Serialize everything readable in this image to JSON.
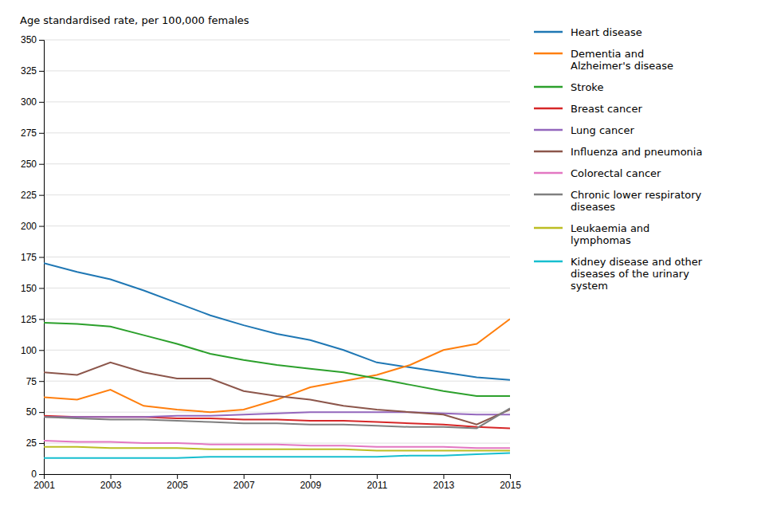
{
  "chart_data": {
    "type": "line",
    "y_label": "Age standardised rate, per 100,000 females",
    "x": [
      2001,
      2002,
      2003,
      2004,
      2005,
      2006,
      2007,
      2008,
      2009,
      2010,
      2011,
      2012,
      2013,
      2014,
      2015
    ],
    "series": [
      {
        "name": "Heart disease",
        "values": [
          170,
          163,
          157,
          148,
          138,
          128,
          120,
          113,
          108,
          100,
          90,
          86,
          82,
          78,
          76
        ]
      },
      {
        "name": "Dementia and\nAlzheimer's disease",
        "values": [
          62,
          60,
          68,
          55,
          52,
          50,
          52,
          60,
          70,
          75,
          80,
          88,
          100,
          105,
          125
        ]
      },
      {
        "name": "Stroke",
        "values": [
          122,
          121,
          119,
          112,
          105,
          97,
          92,
          88,
          85,
          82,
          77,
          72,
          67,
          63,
          63
        ]
      },
      {
        "name": "Breast cancer",
        "values": [
          47,
          46,
          46,
          46,
          45,
          45,
          44,
          44,
          43,
          43,
          42,
          41,
          40,
          38,
          37
        ]
      },
      {
        "name": "Lung cancer",
        "values": [
          46,
          46,
          46,
          46,
          47,
          47,
          48,
          49,
          50,
          50,
          50,
          50,
          49,
          48,
          48
        ]
      },
      {
        "name": "Influenza and pneumonia",
        "values": [
          82,
          80,
          90,
          82,
          77,
          77,
          67,
          63,
          60,
          55,
          52,
          50,
          48,
          40,
          52
        ]
      },
      {
        "name": "Colorectal cancer",
        "values": [
          27,
          26,
          26,
          25,
          25,
          24,
          24,
          24,
          23,
          23,
          22,
          22,
          22,
          21,
          21
        ]
      },
      {
        "name": "Chronic lower respiratory\ndiseases",
        "values": [
          46,
          45,
          44,
          44,
          43,
          42,
          41,
          41,
          40,
          40,
          39,
          38,
          38,
          37,
          53
        ]
      },
      {
        "name": "Leukaemia and\nlymphomas",
        "values": [
          22,
          22,
          21,
          21,
          21,
          20,
          20,
          20,
          20,
          20,
          19,
          19,
          19,
          19,
          19
        ]
      },
      {
        "name": "Kidney disease and other\ndiseases of the urinary\nsystem",
        "values": [
          13,
          13,
          13,
          13,
          13,
          14,
          14,
          14,
          14,
          14,
          14,
          15,
          15,
          16,
          17
        ]
      }
    ],
    "xlim": [
      2001,
      2015
    ],
    "xticks": [
      2001,
      2003,
      2005,
      2007,
      2009,
      2011,
      2013,
      2015
    ],
    "ylim": [
      0,
      350
    ],
    "yticks": [
      0,
      25,
      50,
      75,
      100,
      125,
      150,
      175,
      200,
      225,
      250,
      275,
      300,
      325,
      350
    ],
    "grid": true,
    "legend": "right"
  }
}
